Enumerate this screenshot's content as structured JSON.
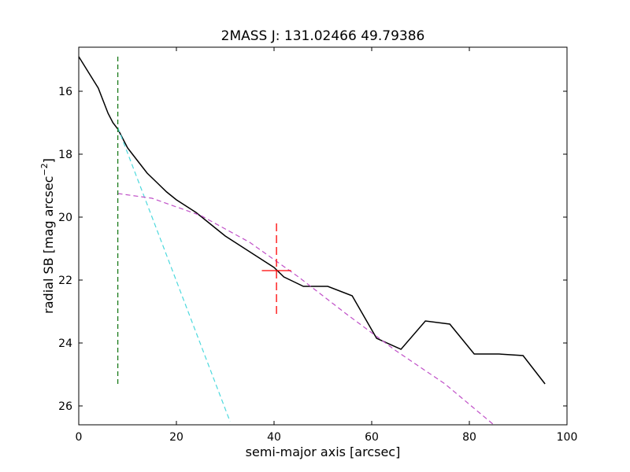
{
  "chart_data": {
    "type": "line",
    "title": "2MASS J: 131.02466 49.79386",
    "xlabel": "semi-major axis [arcsec]",
    "ylabel": "radial SB [mag arcsec",
    "ylabel_sup": "−2",
    "ylabel_end": "]",
    "xlim": [
      0,
      100
    ],
    "ylim": [
      26.6,
      14.6
    ],
    "y_inverted": true,
    "x_ticks": [
      0,
      20,
      40,
      60,
      80,
      100
    ],
    "y_ticks": [
      16,
      18,
      20,
      22,
      24,
      26
    ],
    "grid": false,
    "series": [
      {
        "style": "solid",
        "color": "#000000",
        "x": [
          0,
          2,
          4,
          5,
          6,
          7,
          8,
          9,
          10,
          11,
          12,
          14,
          16,
          18,
          20,
          22,
          24,
          26,
          28,
          30,
          32,
          34,
          36,
          38,
          40,
          42,
          44,
          46,
          48,
          51,
          56,
          61,
          66,
          71,
          76,
          81,
          86,
          91,
          95.5
        ],
        "y": [
          14.9,
          15.4,
          15.9,
          16.3,
          16.7,
          17.0,
          17.2,
          17.5,
          17.8,
          18.0,
          18.2,
          18.6,
          18.9,
          19.2,
          19.45,
          19.65,
          19.85,
          20.1,
          20.35,
          20.6,
          20.8,
          21.0,
          21.2,
          21.4,
          21.6,
          21.9,
          22.05,
          22.2,
          22.2,
          22.2,
          22.5,
          23.85,
          24.2,
          23.3,
          23.4,
          24.35,
          24.35,
          24.4,
          25.3
        ]
      },
      {
        "style": "dashed",
        "color": "#4dd9dd",
        "x": [
          8,
          31
        ],
        "y": [
          17.15,
          26.5
        ]
      },
      {
        "style": "dashed",
        "color": "#c050c8",
        "x": [
          8,
          15,
          25,
          35,
          45,
          55,
          65,
          75,
          85
        ],
        "y": [
          19.25,
          19.4,
          19.95,
          20.8,
          21.9,
          23.1,
          24.25,
          25.3,
          26.6
        ]
      }
    ],
    "markers": [
      {
        "style": "dashed-vertical",
        "color": "#1a7a1a",
        "x": 8,
        "y_range": [
          14.9,
          25.35
        ]
      },
      {
        "style": "cross",
        "color": "#ff0000",
        "x": 40.5,
        "y": 21.7,
        "y_range": [
          20.2,
          23.1
        ],
        "x_range": [
          37.5,
          43.5
        ]
      }
    ]
  }
}
